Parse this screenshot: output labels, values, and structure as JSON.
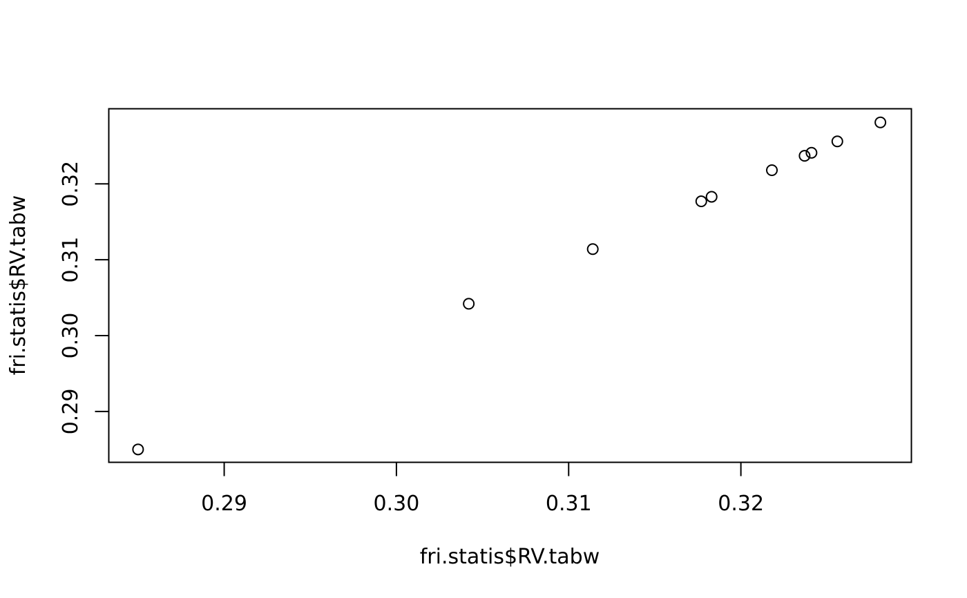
{
  "chart_data": {
    "type": "scatter",
    "title": "",
    "xlabel": "fri.statis$RV.tabw",
    "ylabel": "fri.statis$RV.tabw",
    "xlim": [
      0.2833,
      0.3299
    ],
    "ylim": [
      0.2833,
      0.3299
    ],
    "x_ticks": [
      0.29,
      0.3,
      0.31,
      0.32
    ],
    "x_tick_labels": [
      "0.29",
      "0.30",
      "0.31",
      "0.32"
    ],
    "y_ticks": [
      0.29,
      0.3,
      0.31,
      0.32
    ],
    "y_tick_labels": [
      "0.29",
      "0.30",
      "0.31",
      "0.32"
    ],
    "grid": false,
    "marker": "open-circle",
    "points": [
      {
        "x": 0.285,
        "y": 0.285
      },
      {
        "x": 0.3042,
        "y": 0.3042
      },
      {
        "x": 0.3114,
        "y": 0.3114
      },
      {
        "x": 0.3177,
        "y": 0.3177
      },
      {
        "x": 0.3183,
        "y": 0.3183
      },
      {
        "x": 0.3218,
        "y": 0.3218
      },
      {
        "x": 0.3237,
        "y": 0.3237
      },
      {
        "x": 0.3241,
        "y": 0.3241
      },
      {
        "x": 0.3256,
        "y": 0.3256
      },
      {
        "x": 0.3281,
        "y": 0.3281
      }
    ]
  }
}
